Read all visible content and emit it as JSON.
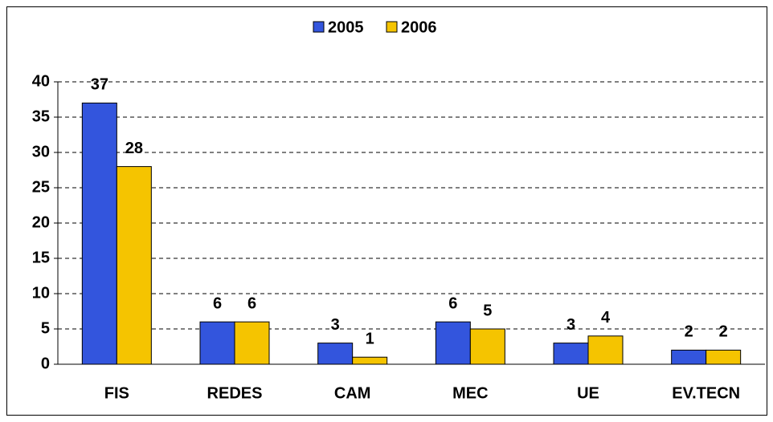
{
  "chart_data": {
    "type": "bar",
    "categories": [
      "FIS",
      "REDES",
      "CAM",
      "MEC",
      "UE",
      "EV.TECN"
    ],
    "series": [
      {
        "name": "2005",
        "color": "#3355dd",
        "values": [
          37,
          6,
          3,
          6,
          3,
          2
        ]
      },
      {
        "name": "2006",
        "color": "#f5c400",
        "values": [
          28,
          6,
          1,
          5,
          4,
          2
        ]
      }
    ],
    "ylim": [
      0,
      40
    ],
    "yticks": [
      0,
      5,
      10,
      15,
      20,
      25,
      30,
      35,
      40
    ],
    "grid": true,
    "legend": "top"
  }
}
